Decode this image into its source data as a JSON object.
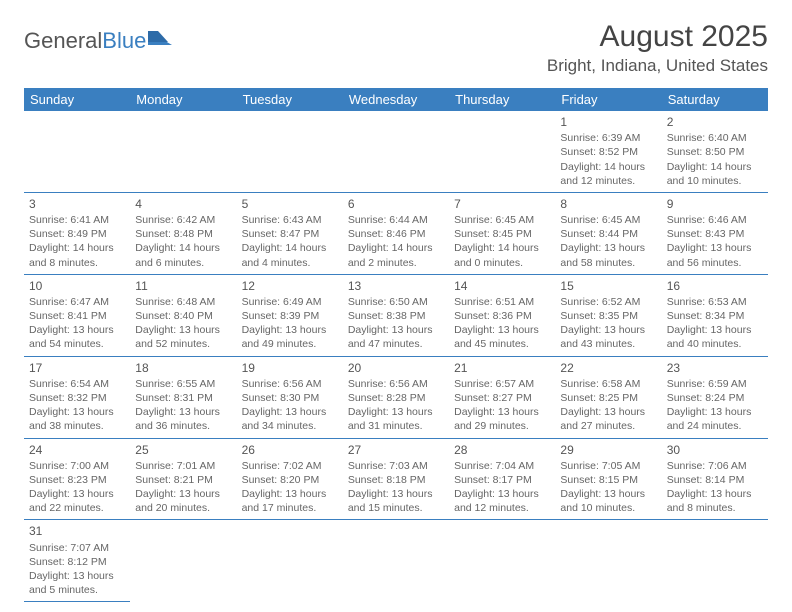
{
  "logo": {
    "text1": "General",
    "text2": "Blue"
  },
  "header": {
    "month_title": "August 2025",
    "location": "Bright, Indiana, United States"
  },
  "colors": {
    "header_bg": "#3a7fc0",
    "header_text": "#ffffff",
    "cell_border": "#3a7fc0",
    "body_text": "#666"
  },
  "weekdays": [
    "Sunday",
    "Monday",
    "Tuesday",
    "Wednesday",
    "Thursday",
    "Friday",
    "Saturday"
  ],
  "first_day_index": 5,
  "days": [
    {
      "n": "1",
      "sunrise": "Sunrise: 6:39 AM",
      "sunset": "Sunset: 8:52 PM",
      "day1": "Daylight: 14 hours",
      "day2": "and 12 minutes."
    },
    {
      "n": "2",
      "sunrise": "Sunrise: 6:40 AM",
      "sunset": "Sunset: 8:50 PM",
      "day1": "Daylight: 14 hours",
      "day2": "and 10 minutes."
    },
    {
      "n": "3",
      "sunrise": "Sunrise: 6:41 AM",
      "sunset": "Sunset: 8:49 PM",
      "day1": "Daylight: 14 hours",
      "day2": "and 8 minutes."
    },
    {
      "n": "4",
      "sunrise": "Sunrise: 6:42 AM",
      "sunset": "Sunset: 8:48 PM",
      "day1": "Daylight: 14 hours",
      "day2": "and 6 minutes."
    },
    {
      "n": "5",
      "sunrise": "Sunrise: 6:43 AM",
      "sunset": "Sunset: 8:47 PM",
      "day1": "Daylight: 14 hours",
      "day2": "and 4 minutes."
    },
    {
      "n": "6",
      "sunrise": "Sunrise: 6:44 AM",
      "sunset": "Sunset: 8:46 PM",
      "day1": "Daylight: 14 hours",
      "day2": "and 2 minutes."
    },
    {
      "n": "7",
      "sunrise": "Sunrise: 6:45 AM",
      "sunset": "Sunset: 8:45 PM",
      "day1": "Daylight: 14 hours",
      "day2": "and 0 minutes."
    },
    {
      "n": "8",
      "sunrise": "Sunrise: 6:45 AM",
      "sunset": "Sunset: 8:44 PM",
      "day1": "Daylight: 13 hours",
      "day2": "and 58 minutes."
    },
    {
      "n": "9",
      "sunrise": "Sunrise: 6:46 AM",
      "sunset": "Sunset: 8:43 PM",
      "day1": "Daylight: 13 hours",
      "day2": "and 56 minutes."
    },
    {
      "n": "10",
      "sunrise": "Sunrise: 6:47 AM",
      "sunset": "Sunset: 8:41 PM",
      "day1": "Daylight: 13 hours",
      "day2": "and 54 minutes."
    },
    {
      "n": "11",
      "sunrise": "Sunrise: 6:48 AM",
      "sunset": "Sunset: 8:40 PM",
      "day1": "Daylight: 13 hours",
      "day2": "and 52 minutes."
    },
    {
      "n": "12",
      "sunrise": "Sunrise: 6:49 AM",
      "sunset": "Sunset: 8:39 PM",
      "day1": "Daylight: 13 hours",
      "day2": "and 49 minutes."
    },
    {
      "n": "13",
      "sunrise": "Sunrise: 6:50 AM",
      "sunset": "Sunset: 8:38 PM",
      "day1": "Daylight: 13 hours",
      "day2": "and 47 minutes."
    },
    {
      "n": "14",
      "sunrise": "Sunrise: 6:51 AM",
      "sunset": "Sunset: 8:36 PM",
      "day1": "Daylight: 13 hours",
      "day2": "and 45 minutes."
    },
    {
      "n": "15",
      "sunrise": "Sunrise: 6:52 AM",
      "sunset": "Sunset: 8:35 PM",
      "day1": "Daylight: 13 hours",
      "day2": "and 43 minutes."
    },
    {
      "n": "16",
      "sunrise": "Sunrise: 6:53 AM",
      "sunset": "Sunset: 8:34 PM",
      "day1": "Daylight: 13 hours",
      "day2": "and 40 minutes."
    },
    {
      "n": "17",
      "sunrise": "Sunrise: 6:54 AM",
      "sunset": "Sunset: 8:32 PM",
      "day1": "Daylight: 13 hours",
      "day2": "and 38 minutes."
    },
    {
      "n": "18",
      "sunrise": "Sunrise: 6:55 AM",
      "sunset": "Sunset: 8:31 PM",
      "day1": "Daylight: 13 hours",
      "day2": "and 36 minutes."
    },
    {
      "n": "19",
      "sunrise": "Sunrise: 6:56 AM",
      "sunset": "Sunset: 8:30 PM",
      "day1": "Daylight: 13 hours",
      "day2": "and 34 minutes."
    },
    {
      "n": "20",
      "sunrise": "Sunrise: 6:56 AM",
      "sunset": "Sunset: 8:28 PM",
      "day1": "Daylight: 13 hours",
      "day2": "and 31 minutes."
    },
    {
      "n": "21",
      "sunrise": "Sunrise: 6:57 AM",
      "sunset": "Sunset: 8:27 PM",
      "day1": "Daylight: 13 hours",
      "day2": "and 29 minutes."
    },
    {
      "n": "22",
      "sunrise": "Sunrise: 6:58 AM",
      "sunset": "Sunset: 8:25 PM",
      "day1": "Daylight: 13 hours",
      "day2": "and 27 minutes."
    },
    {
      "n": "23",
      "sunrise": "Sunrise: 6:59 AM",
      "sunset": "Sunset: 8:24 PM",
      "day1": "Daylight: 13 hours",
      "day2": "and 24 minutes."
    },
    {
      "n": "24",
      "sunrise": "Sunrise: 7:00 AM",
      "sunset": "Sunset: 8:23 PM",
      "day1": "Daylight: 13 hours",
      "day2": "and 22 minutes."
    },
    {
      "n": "25",
      "sunrise": "Sunrise: 7:01 AM",
      "sunset": "Sunset: 8:21 PM",
      "day1": "Daylight: 13 hours",
      "day2": "and 20 minutes."
    },
    {
      "n": "26",
      "sunrise": "Sunrise: 7:02 AM",
      "sunset": "Sunset: 8:20 PM",
      "day1": "Daylight: 13 hours",
      "day2": "and 17 minutes."
    },
    {
      "n": "27",
      "sunrise": "Sunrise: 7:03 AM",
      "sunset": "Sunset: 8:18 PM",
      "day1": "Daylight: 13 hours",
      "day2": "and 15 minutes."
    },
    {
      "n": "28",
      "sunrise": "Sunrise: 7:04 AM",
      "sunset": "Sunset: 8:17 PM",
      "day1": "Daylight: 13 hours",
      "day2": "and 12 minutes."
    },
    {
      "n": "29",
      "sunrise": "Sunrise: 7:05 AM",
      "sunset": "Sunset: 8:15 PM",
      "day1": "Daylight: 13 hours",
      "day2": "and 10 minutes."
    },
    {
      "n": "30",
      "sunrise": "Sunrise: 7:06 AM",
      "sunset": "Sunset: 8:14 PM",
      "day1": "Daylight: 13 hours",
      "day2": "and 8 minutes."
    },
    {
      "n": "31",
      "sunrise": "Sunrise: 7:07 AM",
      "sunset": "Sunset: 8:12 PM",
      "day1": "Daylight: 13 hours",
      "day2": "and 5 minutes."
    }
  ]
}
